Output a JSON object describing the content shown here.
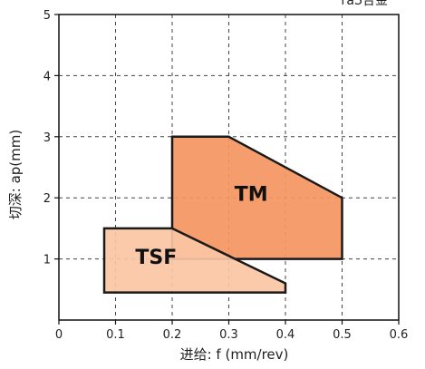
{
  "chart_data": {
    "type": "area",
    "title": "",
    "corner_text": "таЗ合金",
    "xlabel": "进给: f (mm/rev)",
    "ylabel": "切深: ap(mm)",
    "xlim": [
      0,
      0.6
    ],
    "ylim": [
      0,
      5
    ],
    "x_ticks": [
      "0",
      "0.1",
      "0.2",
      "0.3",
      "0.4",
      "0.5",
      "0.6"
    ],
    "y_ticks": [
      "1",
      "2",
      "3",
      "4",
      "5"
    ],
    "x_tick_values": [
      0,
      0.1,
      0.2,
      0.3,
      0.4,
      0.5,
      0.6
    ],
    "y_tick_values": [
      1,
      2,
      3,
      4,
      5
    ],
    "grid": true,
    "regions": [
      {
        "name": "TM",
        "color": "#f4955f",
        "label_at": [
          0.31,
          1.95
        ],
        "polygon": [
          [
            0.2,
            3.0
          ],
          [
            0.3,
            3.0
          ],
          [
            0.5,
            2.0
          ],
          [
            0.5,
            1.0
          ],
          [
            0.2,
            1.0
          ]
        ]
      },
      {
        "name": "TSF",
        "color": "#fac6a4",
        "label_at": [
          0.135,
          0.92
        ],
        "polygon": [
          [
            0.08,
            1.5
          ],
          [
            0.2,
            1.5
          ],
          [
            0.4,
            0.6
          ],
          [
            0.4,
            0.45
          ],
          [
            0.08,
            0.45
          ]
        ]
      }
    ]
  }
}
